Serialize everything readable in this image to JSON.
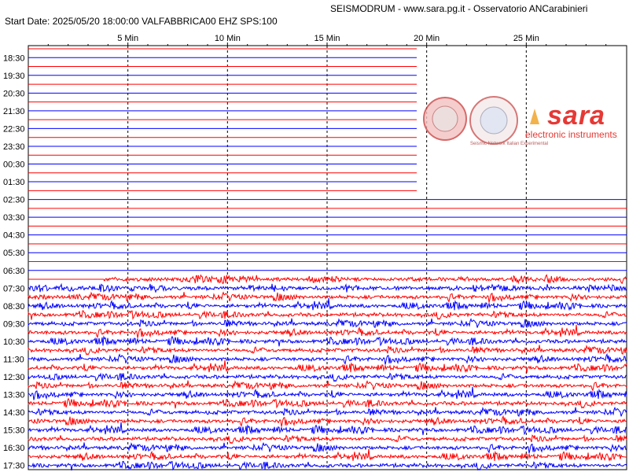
{
  "header": {
    "title": "SEISMODRUM - www.sara.pg.it - Osservatorio ANCarabinieri",
    "start_info": "Start Date: 2025/05/20 18:00:00 VALFABBRICA00 EHZ  SPS:100"
  },
  "logo": {
    "brand": "sara",
    "subtitle": "electronic instruments",
    "badge_text": "Seismic Network Italian Experimental"
  },
  "colors": {
    "odd_trace": "#0000ff",
    "even_trace": "#ff0000",
    "grid": "#000000"
  },
  "chart_data": {
    "type": "helicorder",
    "x_unit": "minutes",
    "xlim": [
      0,
      30
    ],
    "x_ticks": [
      5,
      10,
      15,
      20,
      25
    ],
    "x_tick_labels": [
      "5 Min",
      "10 Min",
      "15 Min",
      "20 Min",
      "25 Min"
    ],
    "row_minutes": 30,
    "row_count": 48,
    "hour_labels": [
      "18:30",
      "19:30",
      "20:30",
      "21:30",
      "22:30",
      "23:30",
      "00:30",
      "01:30",
      "02:30",
      "03:30",
      "04:30",
      "05:30",
      "06:30",
      "07:30",
      "08:30",
      "09:30",
      "10:30",
      "11:30",
      "12:30",
      "13:30",
      "14:30",
      "15:30",
      "16:30",
      "17:30"
    ],
    "quiet_rows_end": 25,
    "data_starts_row": 26,
    "data_start_minute": 3.8,
    "partial_rows_cut_minute": 19.5,
    "partial_rows_range": [
      0,
      16
    ]
  }
}
